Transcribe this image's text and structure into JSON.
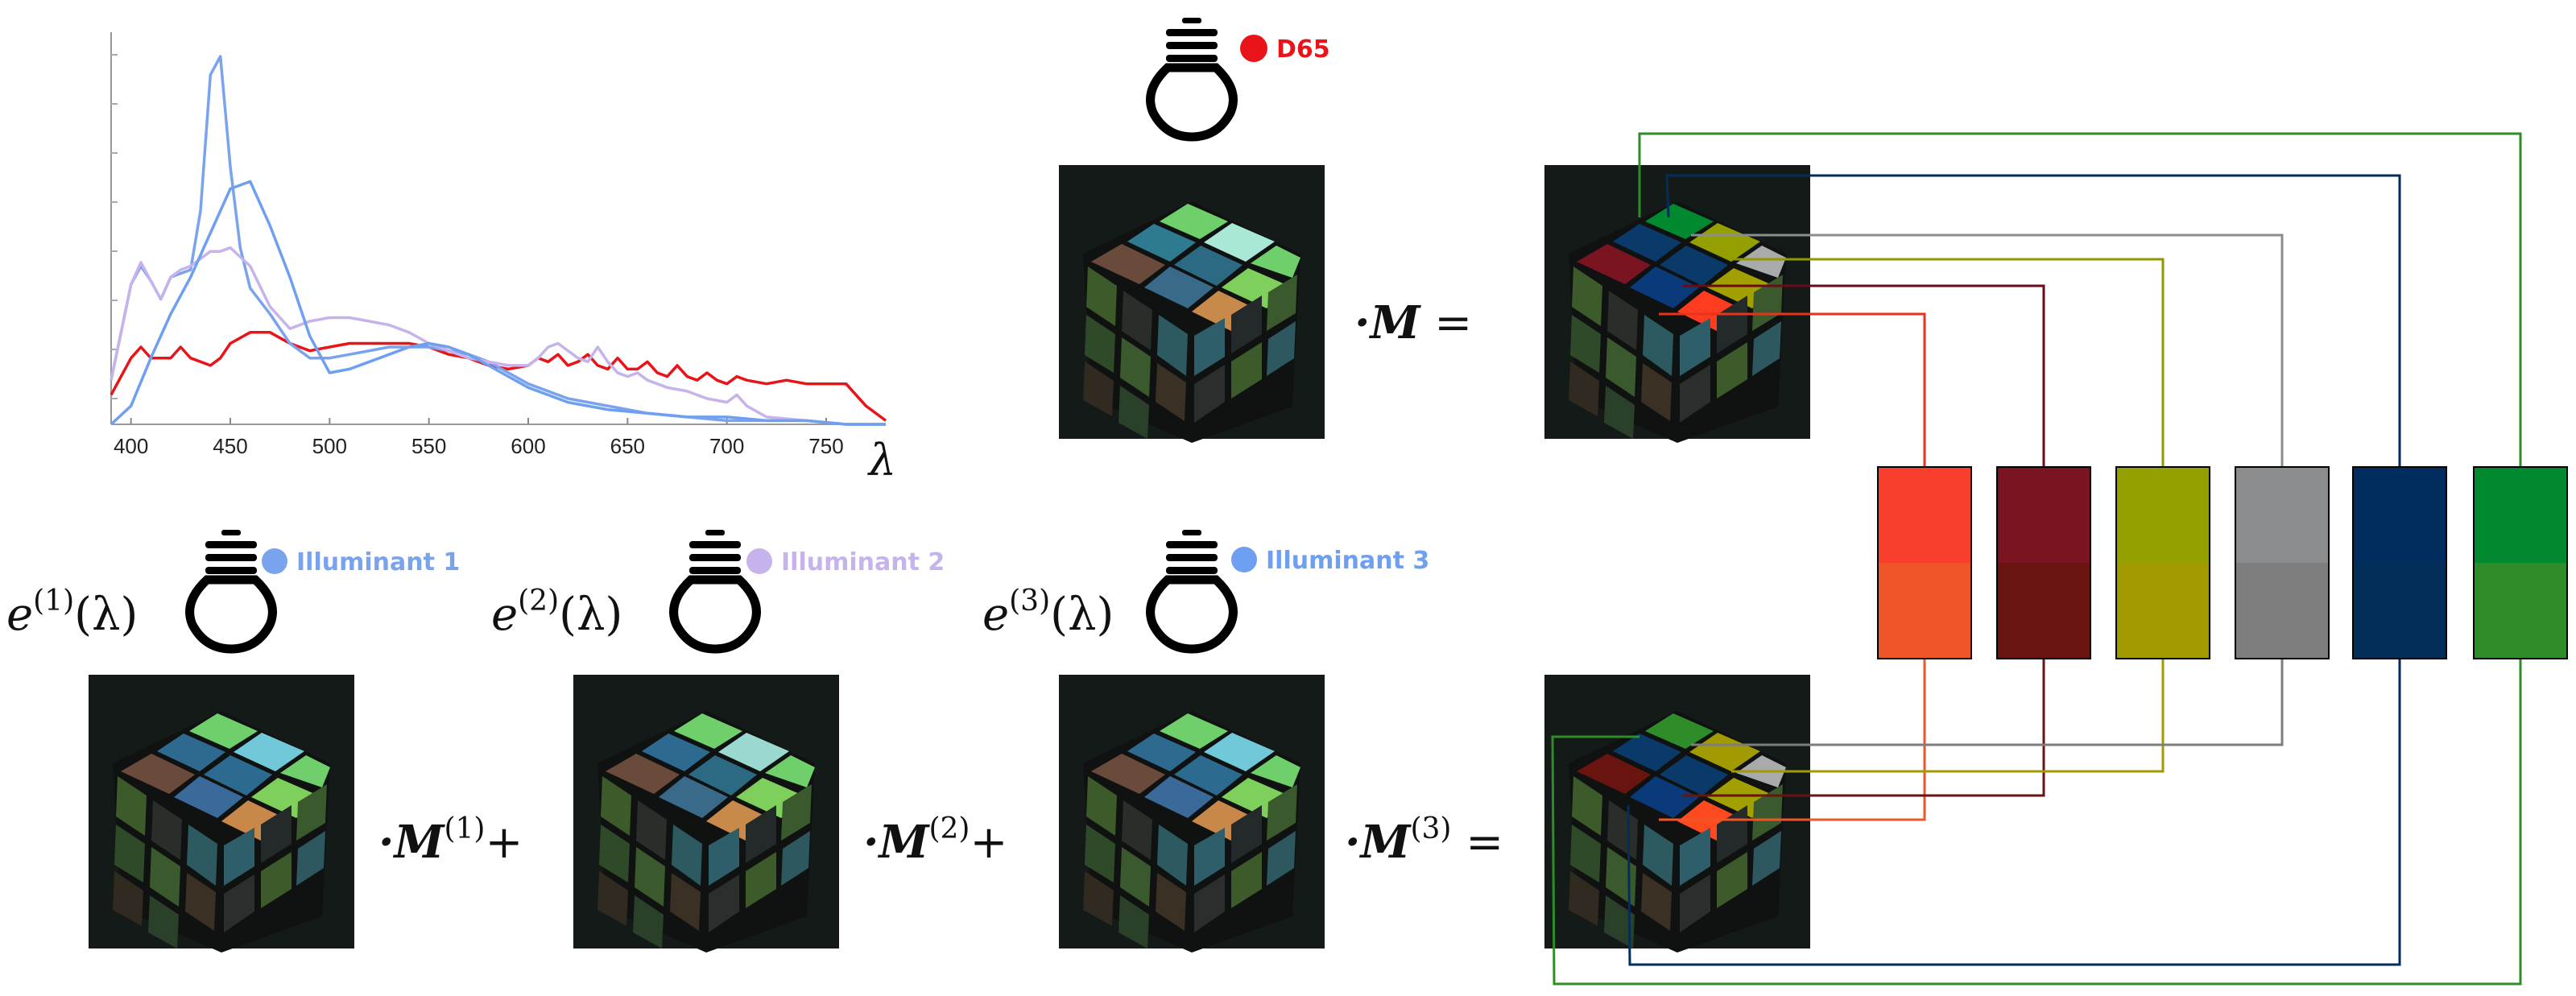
{
  "colors": {
    "d65": "#e8141a",
    "illum1": "#7aa3ee",
    "illum2": "#c7b3ec",
    "illum3": "#6f9ff0"
  },
  "illuminants": {
    "top": {
      "label": "D65",
      "icon": "lightbulb-icon"
    },
    "i1": {
      "label": "Illuminant 1",
      "icon": "lightbulb-icon"
    },
    "i2": {
      "label": "Illuminant 2",
      "icon": "lightbulb-icon"
    },
    "i3": {
      "label": "Illuminant 3",
      "icon": "lightbulb-icon"
    }
  },
  "equations": {
    "top_operator": "·M =",
    "e1": {
      "base": "e",
      "sup": "(1)",
      "arg": "(λ)"
    },
    "e2": {
      "base": "e",
      "sup": "(2)",
      "arg": "(λ)"
    },
    "e3": {
      "base": "e",
      "sup": "(3)",
      "arg": "(λ)"
    },
    "m1": {
      "pre": "·M",
      "sup": "(1)",
      "post": "+"
    },
    "m2": {
      "pre": "·M",
      "sup": "(2)",
      "post": "+"
    },
    "m3": {
      "pre": "·M",
      "sup": "(3)",
      "post": "="
    }
  },
  "patches": [
    {
      "top": "#f83e2c",
      "bottom": "#ef5528"
    },
    {
      "top": "#7a1420",
      "bottom": "#6a1410"
    },
    {
      "top": "#94a000",
      "bottom": "#a19a00"
    },
    {
      "top": "#8a8c8e",
      "bottom": "#7c7d7c"
    },
    {
      "top": "#002c5e",
      "bottom": "#032e5a"
    },
    {
      "top": "#00892e",
      "bottom": "#2f8d29"
    }
  ],
  "chart_data": {
    "type": "line",
    "xlabel": "λ",
    "xlim": [
      390,
      780
    ],
    "xticks": [
      400,
      450,
      500,
      550,
      600,
      650,
      700,
      750
    ],
    "grid": false,
    "series": [
      {
        "color": "#e8141a",
        "x": [
          390,
          400,
          405,
          410,
          420,
          425,
          430,
          440,
          445,
          450,
          460,
          470,
          480,
          490,
          500,
          510,
          520,
          530,
          540,
          550,
          560,
          570,
          580,
          590,
          600,
          605,
          610,
          615,
          620,
          625,
          630,
          635,
          640,
          645,
          650,
          655,
          660,
          665,
          670,
          675,
          680,
          685,
          690,
          695,
          700,
          705,
          710,
          720,
          730,
          740,
          750,
          760,
          765,
          770,
          780
        ],
        "y": [
          0.08,
          0.18,
          0.21,
          0.18,
          0.18,
          0.21,
          0.18,
          0.16,
          0.18,
          0.22,
          0.25,
          0.25,
          0.22,
          0.2,
          0.21,
          0.22,
          0.22,
          0.22,
          0.22,
          0.21,
          0.19,
          0.18,
          0.16,
          0.15,
          0.16,
          0.18,
          0.17,
          0.19,
          0.16,
          0.17,
          0.19,
          0.16,
          0.15,
          0.18,
          0.15,
          0.15,
          0.17,
          0.14,
          0.13,
          0.16,
          0.13,
          0.12,
          0.14,
          0.12,
          0.11,
          0.13,
          0.12,
          0.11,
          0.12,
          0.11,
          0.11,
          0.11,
          0.08,
          0.05,
          0.01
        ]
      },
      {
        "color": "#7aa3ee",
        "x": [
          390,
          400,
          405,
          410,
          415,
          420,
          425,
          430,
          435,
          440,
          445,
          450,
          455,
          460,
          470,
          480,
          490,
          500,
          510,
          520,
          530,
          540,
          550,
          560,
          570,
          580,
          590,
          600,
          620,
          640,
          660,
          680,
          700,
          720,
          740,
          760,
          780
        ],
        "y": [
          0.12,
          0.38,
          0.43,
          0.39,
          0.34,
          0.4,
          0.41,
          0.42,
          0.58,
          0.95,
          1.0,
          0.7,
          0.48,
          0.37,
          0.3,
          0.22,
          0.18,
          0.18,
          0.19,
          0.2,
          0.21,
          0.21,
          0.21,
          0.2,
          0.19,
          0.17,
          0.14,
          0.11,
          0.07,
          0.05,
          0.03,
          0.02,
          0.01,
          0.01,
          0.01,
          0.0,
          0.0
        ]
      },
      {
        "color": "#c7b3ec",
        "x": [
          390,
          400,
          405,
          410,
          415,
          420,
          425,
          430,
          440,
          445,
          450,
          460,
          470,
          480,
          490,
          500,
          510,
          520,
          530,
          540,
          550,
          560,
          570,
          580,
          590,
          600,
          605,
          610,
          615,
          620,
          625,
          630,
          635,
          640,
          645,
          650,
          655,
          660,
          665,
          670,
          680,
          690,
          700,
          705,
          710,
          720,
          740,
          760,
          780
        ],
        "y": [
          0.12,
          0.38,
          0.44,
          0.39,
          0.34,
          0.4,
          0.42,
          0.43,
          0.47,
          0.47,
          0.48,
          0.43,
          0.32,
          0.26,
          0.28,
          0.29,
          0.29,
          0.28,
          0.27,
          0.25,
          0.22,
          0.2,
          0.18,
          0.17,
          0.16,
          0.16,
          0.18,
          0.21,
          0.22,
          0.2,
          0.18,
          0.17,
          0.21,
          0.17,
          0.14,
          0.13,
          0.14,
          0.12,
          0.11,
          0.1,
          0.09,
          0.07,
          0.06,
          0.08,
          0.05,
          0.02,
          0.01,
          0.0,
          0.0
        ]
      },
      {
        "color": "#6f9ff0",
        "x": [
          390,
          400,
          410,
          420,
          430,
          440,
          450,
          460,
          470,
          480,
          490,
          500,
          510,
          520,
          530,
          540,
          550,
          560,
          570,
          580,
          590,
          600,
          620,
          640,
          660,
          680,
          700,
          720,
          740,
          760,
          780
        ],
        "y": [
          0.0,
          0.05,
          0.18,
          0.3,
          0.4,
          0.52,
          0.64,
          0.66,
          0.54,
          0.4,
          0.24,
          0.14,
          0.15,
          0.17,
          0.19,
          0.21,
          0.22,
          0.21,
          0.19,
          0.16,
          0.13,
          0.1,
          0.06,
          0.04,
          0.03,
          0.02,
          0.02,
          0.01,
          0.01,
          0.0,
          0.0
        ]
      }
    ]
  }
}
